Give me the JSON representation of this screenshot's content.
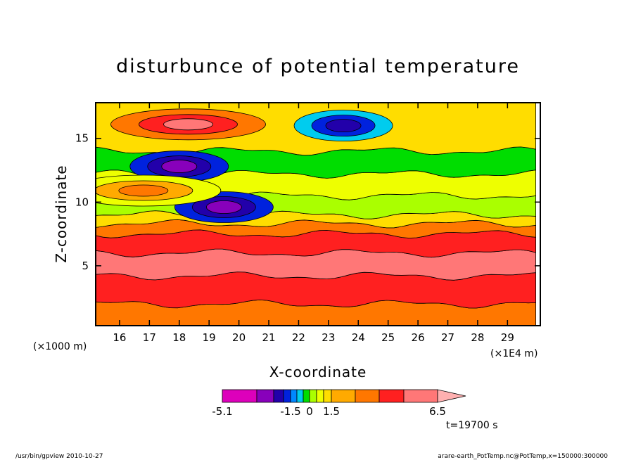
{
  "chart_data": {
    "type": "heatmap",
    "title": "disturbunce of potential temperature",
    "xlabel": "X-coordinate",
    "ylabel": "Z-coordinate",
    "x_unit_label": "(×1E4 m)",
    "y_unit_label": "(×1000 m)",
    "xlim": [
      15.2,
      30.1
    ],
    "ylim": [
      0.3,
      17.8
    ],
    "xticks": [
      16,
      17,
      18,
      19,
      20,
      21,
      22,
      23,
      24,
      25,
      26,
      27,
      28,
      29
    ],
    "yticks": [
      5,
      10,
      15
    ],
    "colorbar": {
      "levels": [
        -5.1,
        -4.0,
        -3.0,
        -2.0,
        -1.5,
        -1.0,
        -0.5,
        0,
        0.5,
        1.0,
        1.5,
        2.5,
        4.0,
        5.0,
        6.5
      ],
      "colors": [
        "#dd00bb",
        "#8800bb",
        "#2200aa",
        "#0022dd",
        "#0088ff",
        "#00ccee",
        "#00dd00",
        "#aaff00",
        "#eeff00",
        "#ffdd00",
        "#ffaa00",
        "#ff7700",
        "#ff2020",
        "#ff7777",
        "#ffb0b0"
      ],
      "tick_labels": [
        "-5.1",
        "-1.5",
        "0",
        "1.5",
        "6.5"
      ]
    },
    "bands": [
      {
        "z": [
          0.3,
          2.0
        ],
        "value": 2.5
      },
      {
        "z": [
          2.0,
          4.2
        ],
        "value": 4.0
      },
      {
        "z": [
          4.2,
          6.0
        ],
        "value": 5.0
      },
      {
        "z": [
          6.0,
          7.5
        ],
        "value": 4.0
      },
      {
        "z": [
          7.5,
          8.3
        ],
        "value": 2.5
      },
      {
        "z": [
          8.3,
          9.0
        ],
        "value": 1.0
      },
      {
        "z": [
          9.0,
          10.5
        ],
        "value": 0.0
      },
      {
        "z": [
          10.5,
          12.2
        ],
        "value": 0.5
      },
      {
        "z": [
          12.2,
          14.0
        ],
        "value": -0.5
      },
      {
        "z": [
          14.0,
          17.8
        ],
        "value": 1.0
      }
    ],
    "features": [
      {
        "kind": "max",
        "x": 18.3,
        "z": 16.1,
        "value": 5.0
      },
      {
        "kind": "min",
        "x": 23.5,
        "z": 16.0,
        "value": -3.0
      },
      {
        "kind": "min",
        "x": 18.0,
        "z": 12.8,
        "value": -4.0
      },
      {
        "kind": "min",
        "x": 19.5,
        "z": 9.6,
        "value": -4.0
      },
      {
        "kind": "max",
        "x": 16.8,
        "z": 10.9,
        "value": 2.5
      }
    ]
  },
  "annotations": {
    "time_label": "t=19700 s",
    "footer_left": "/usr/bin/gpview   2010-10-27",
    "footer_right": "arare-earth_PotTemp.nc@PotTemp,x=150000:300000"
  }
}
